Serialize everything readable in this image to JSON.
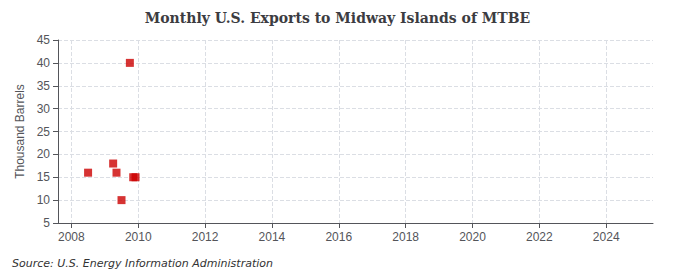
{
  "chart_data": {
    "type": "scatter",
    "title": "Monthly U.S. Exports to Midway Islands of MTBE",
    "ylabel": "Thousand Barrels",
    "source": "Source: U.S. Energy Information Administration",
    "x": [
      2008.5,
      2009.25,
      2009.35,
      2009.5,
      2009.75,
      2009.85,
      2009.92
    ],
    "values": [
      16,
      18,
      16,
      10,
      40,
      15,
      15
    ],
    "color": "#cc0000",
    "marker": "square",
    "xlim": [
      2007.6,
      2025.4
    ],
    "ylim": [
      5,
      45
    ],
    "xticks": [
      2008,
      2010,
      2012,
      2014,
      2016,
      2018,
      2020,
      2022,
      2024
    ],
    "yticks": [
      5,
      10,
      15,
      20,
      25,
      30,
      35,
      40,
      45
    ],
    "grid": true
  }
}
